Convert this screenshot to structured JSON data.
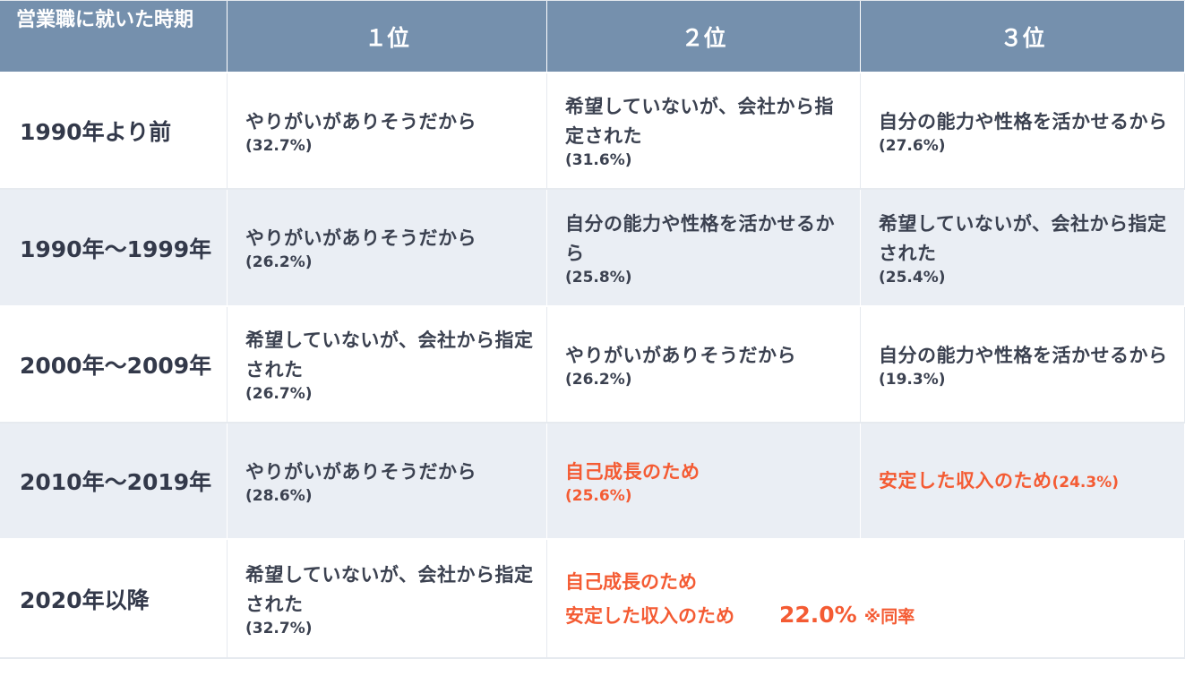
{
  "header": {
    "col0": "営業職に就いた時期",
    "col1": "１位",
    "col2": "２位",
    "col3": "３位"
  },
  "rows": [
    {
      "period": "1990年より前",
      "r1": {
        "text": "やりがいがありそうだから",
        "pct": "(32.7%)"
      },
      "r2": {
        "text": "希望していないが、会社から指定された",
        "pct": "(31.6%)"
      },
      "r3": {
        "text": "自分の能力や性格を活かせるから",
        "pct": "(27.6%)"
      }
    },
    {
      "period": "1990年〜1999年",
      "r1": {
        "text": "やりがいがありそうだから",
        "pct": "(26.2%)"
      },
      "r2": {
        "text": "自分の能力や性格を活かせるから",
        "pct": "(25.8%)"
      },
      "r3": {
        "text": "希望していないが、会社から指定された",
        "pct": "(25.4%)"
      }
    },
    {
      "period": "2000年〜2009年",
      "r1": {
        "text": "希望していないが、会社から指定された",
        "pct": "(26.7%)"
      },
      "r2": {
        "text": "やりがいがありそうだから",
        "pct": "(26.2%)"
      },
      "r3": {
        "text": "自分の能力や性格を活かせるから",
        "pct": "(19.3%)"
      }
    },
    {
      "period": "2010年〜2019年",
      "r1": {
        "text": "やりがいがありそうだから",
        "pct": "(28.6%)"
      },
      "r2": {
        "text": "自己成長のため",
        "pct": "(25.6%)"
      },
      "r3": {
        "text": "安定した収入のため",
        "pct": "(24.3%)"
      }
    },
    {
      "period": "2020年以降",
      "r1": {
        "text": "希望していないが、会社から指定された",
        "pct": "(32.7%)"
      },
      "merged": {
        "line1": "自己成長のため",
        "line2": "安定した収入のため",
        "pct": "22.0%",
        "note": "※同率"
      }
    }
  ],
  "colors": {
    "header_bg": "#7590ad",
    "stripe_bg": "#eaeef4",
    "highlight": "#f45b33",
    "text": "#33394a"
  }
}
